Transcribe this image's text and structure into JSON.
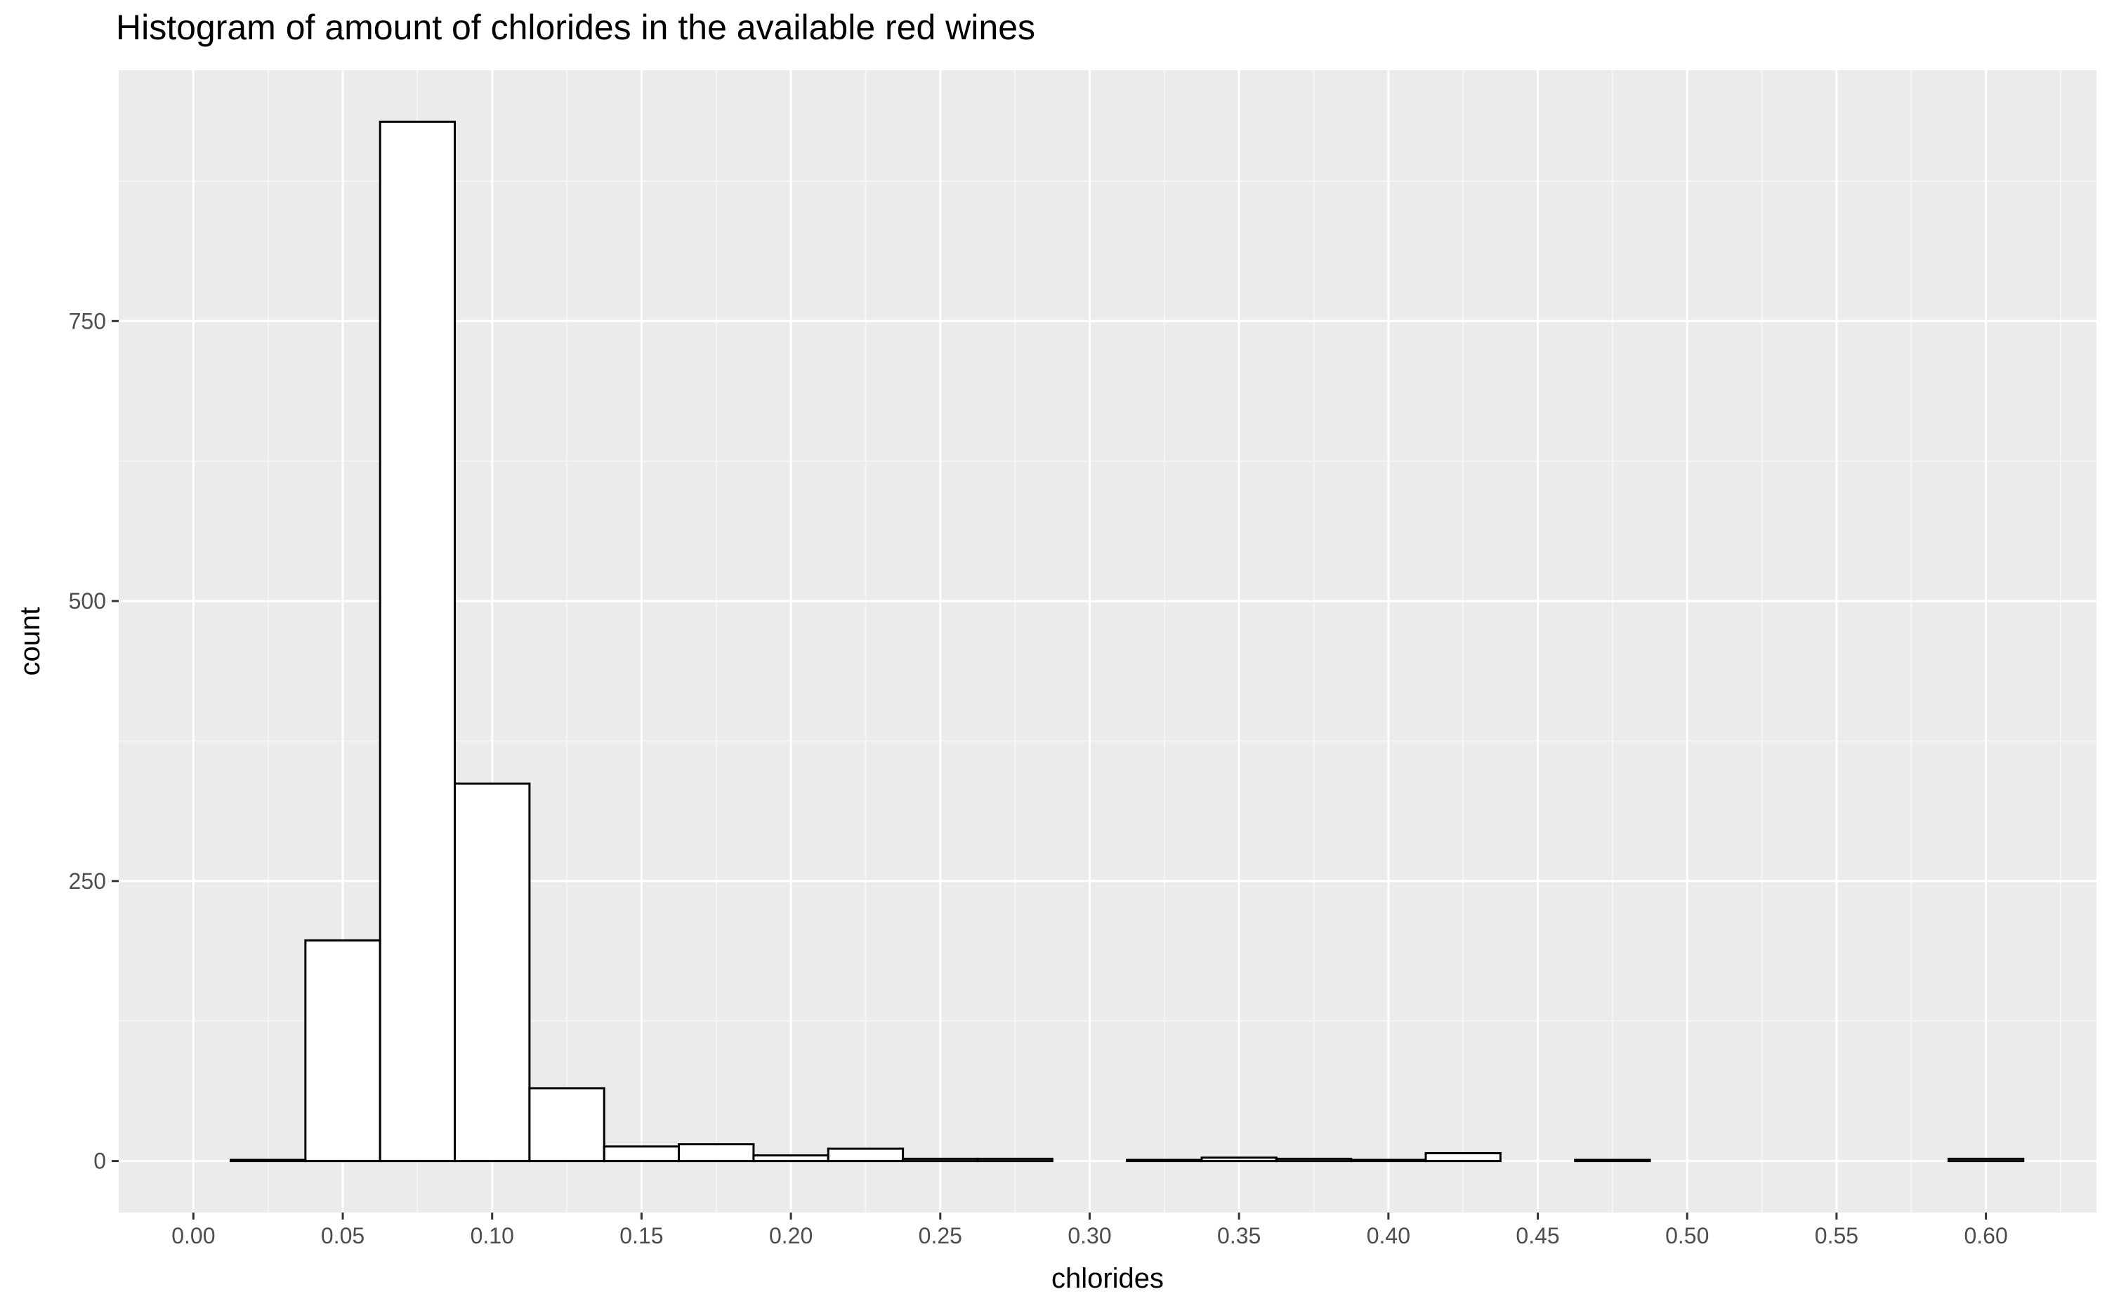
{
  "chart_data": {
    "type": "bar",
    "title": "Histogram of amount of chlorides in the available red wines",
    "xlabel": "chlorides",
    "ylabel": "count",
    "xlim": [
      -0.025,
      0.637
    ],
    "ylim": [
      -46,
      974
    ],
    "x_ticks": [
      "0.00",
      "0.05",
      "0.10",
      "0.15",
      "0.20",
      "0.25",
      "0.30",
      "0.35",
      "0.40",
      "0.45",
      "0.50",
      "0.55",
      "0.60"
    ],
    "y_ticks": [
      "0",
      "250",
      "500",
      "750"
    ],
    "bin_width": 0.025,
    "bins": [
      {
        "x0": 0.0125,
        "x1": 0.0375,
        "count": 1
      },
      {
        "x0": 0.0375,
        "x1": 0.0625,
        "count": 197
      },
      {
        "x0": 0.0625,
        "x1": 0.0875,
        "count": 928
      },
      {
        "x0": 0.0875,
        "x1": 0.1125,
        "count": 337
      },
      {
        "x0": 0.1125,
        "x1": 0.1375,
        "count": 65
      },
      {
        "x0": 0.1375,
        "x1": 0.1625,
        "count": 13
      },
      {
        "x0": 0.1625,
        "x1": 0.1875,
        "count": 15
      },
      {
        "x0": 0.1875,
        "x1": 0.2125,
        "count": 5
      },
      {
        "x0": 0.2125,
        "x1": 0.2375,
        "count": 11
      },
      {
        "x0": 0.2375,
        "x1": 0.2625,
        "count": 2
      },
      {
        "x0": 0.2625,
        "x1": 0.2875,
        "count": 2
      },
      {
        "x0": 0.2875,
        "x1": 0.3125,
        "count": 0
      },
      {
        "x0": 0.3125,
        "x1": 0.3375,
        "count": 1
      },
      {
        "x0": 0.3375,
        "x1": 0.3625,
        "count": 3
      },
      {
        "x0": 0.3625,
        "x1": 0.3875,
        "count": 2
      },
      {
        "x0": 0.3875,
        "x1": 0.4125,
        "count": 1
      },
      {
        "x0": 0.4125,
        "x1": 0.4375,
        "count": 7
      },
      {
        "x0": 0.4375,
        "x1": 0.4625,
        "count": 0
      },
      {
        "x0": 0.4625,
        "x1": 0.4875,
        "count": 1
      },
      {
        "x0": 0.4875,
        "x1": 0.5125,
        "count": 0
      },
      {
        "x0": 0.5125,
        "x1": 0.5375,
        "count": 0
      },
      {
        "x0": 0.5375,
        "x1": 0.5625,
        "count": 0
      },
      {
        "x0": 0.5625,
        "x1": 0.5875,
        "count": 0
      },
      {
        "x0": 0.5875,
        "x1": 0.6125,
        "count": 2
      }
    ],
    "grid": true,
    "colors": {
      "panel_background": "#ebebeb",
      "grid_major": "#ffffff",
      "grid_minor": "#f5f5f5",
      "bar_fill": "#ffffff",
      "bar_outline": "#000000",
      "tick_text": "#4d4d4d",
      "tick_mark": "#333333"
    }
  }
}
